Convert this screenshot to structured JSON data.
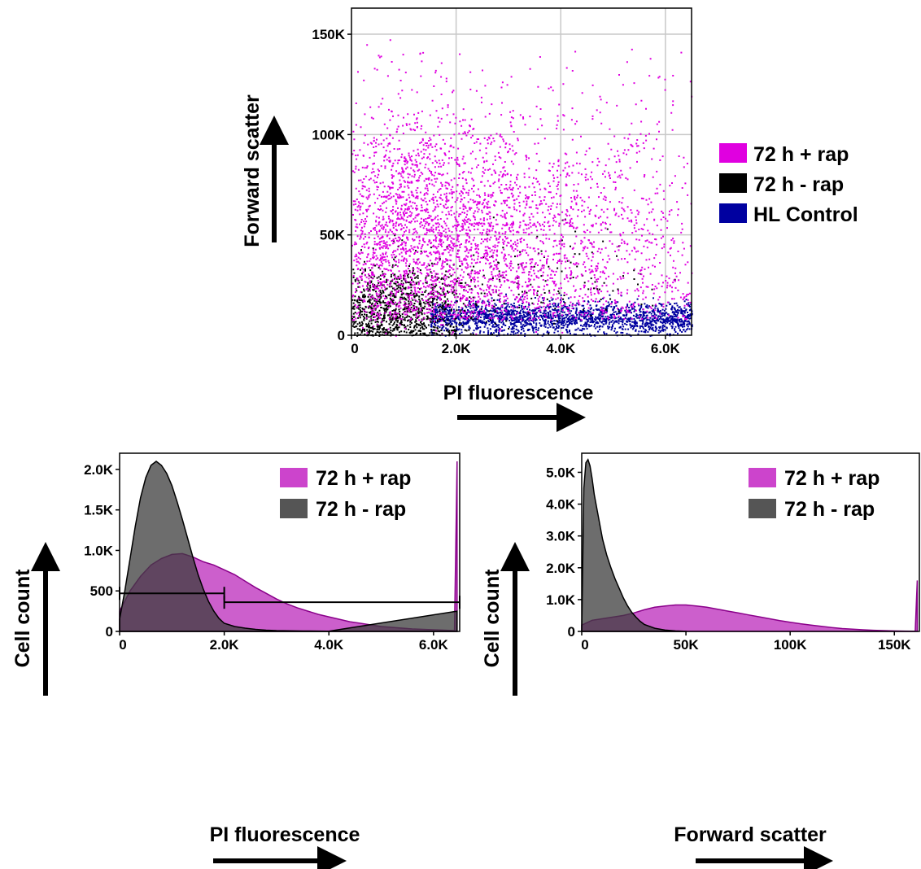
{
  "chart_data": [
    {
      "type": "scatter",
      "xlabel": "PI fluorescence",
      "ylabel": "Forward scatter",
      "xlim": [
        0,
        6500
      ],
      "ylim": [
        0,
        163000
      ],
      "x_ticks": [
        "0",
        "2.0K",
        "4.0K",
        "6.0K"
      ],
      "x_tick_values": [
        0,
        2000,
        4000,
        6000
      ],
      "y_ticks": [
        "0",
        "50K",
        "100K",
        "150K"
      ],
      "y_tick_values": [
        0,
        50000,
        100000,
        150000
      ],
      "grid": true,
      "legend_position": "right",
      "series": [
        {
          "name": "HL Control",
          "color": "#0000a0",
          "approx_center": [
            3600,
            9000
          ],
          "approx_spread": [
            1900,
            5000
          ],
          "approx_points": 1900
        },
        {
          "name": "72 h - rap",
          "color": "#000000",
          "approx_center": [
            900,
            13000
          ],
          "approx_spread": [
            700,
            12000
          ],
          "approx_points": 3200
        },
        {
          "name": "72 h + rap",
          "color": "#e000e0",
          "approx_center": [
            1900,
            55000
          ],
          "approx_spread": [
            1300,
            35000
          ],
          "approx_points": 4200
        }
      ]
    },
    {
      "type": "area",
      "xlabel": "PI fluorescence",
      "ylabel": "Cell count",
      "xlim": [
        0,
        6500
      ],
      "ylim": [
        0,
        2200
      ],
      "x_ticks": [
        "0",
        "2.0K",
        "4.0K",
        "6.0K"
      ],
      "x_tick_values": [
        0,
        2000,
        4000,
        6000
      ],
      "y_ticks": [
        "0",
        "500",
        "1.0K",
        "1.5K",
        "2.0K"
      ],
      "y_tick_values": [
        0,
        500,
        1000,
        1500,
        2000
      ],
      "legend_position": "top-right",
      "gates": [
        {
          "x_from": 0,
          "x_to": 2000,
          "y": 470
        },
        {
          "x_from": 2000,
          "x_to": 6500,
          "y": 360
        }
      ],
      "series": [
        {
          "name": "72 h + rap",
          "color": "#cc44cc",
          "x": [
            0,
            200,
            400,
            600,
            800,
            1000,
            1200,
            1400,
            1600,
            1800,
            2000,
            2200,
            2400,
            2600,
            2800,
            3000,
            3200,
            3400,
            3600,
            3800,
            4000,
            4200,
            4400,
            4600,
            4800,
            5000,
            5200,
            5400,
            5600,
            5800,
            6000,
            6200,
            6400,
            6450
          ],
          "values": [
            250,
            500,
            680,
            820,
            900,
            950,
            960,
            920,
            860,
            820,
            760,
            700,
            620,
            540,
            470,
            400,
            340,
            290,
            250,
            210,
            180,
            150,
            120,
            100,
            80,
            60,
            50,
            40,
            30,
            25,
            20,
            15,
            10,
            2100
          ]
        },
        {
          "name": "72 h - rap",
          "color": "#555555",
          "x": [
            0,
            100,
            200,
            300,
            400,
            500,
            600,
            700,
            800,
            900,
            1000,
            1100,
            1200,
            1300,
            1400,
            1500,
            1600,
            1700,
            1800,
            1900,
            2000,
            2200,
            2400,
            2600,
            2800,
            3000,
            3500,
            4000,
            6450
          ],
          "values": [
            150,
            500,
            900,
            1300,
            1650,
            1900,
            2050,
            2100,
            2050,
            1950,
            1800,
            1600,
            1380,
            1150,
            920,
            700,
            520,
            370,
            250,
            160,
            100,
            60,
            40,
            25,
            15,
            10,
            5,
            3,
            250
          ]
        }
      ]
    },
    {
      "type": "area",
      "xlabel": "Forward scatter",
      "ylabel": "Cell count",
      "xlim": [
        0,
        162000
      ],
      "ylim": [
        0,
        5600
      ],
      "x_ticks": [
        "0",
        "50K",
        "100K",
        "150K"
      ],
      "x_tick_values": [
        0,
        50000,
        100000,
        150000
      ],
      "y_ticks": [
        "0",
        "1.0K",
        "2.0K",
        "3.0K",
        "4.0K",
        "5.0K"
      ],
      "y_tick_values": [
        0,
        1000,
        2000,
        3000,
        4000,
        5000
      ],
      "legend_position": "top-right",
      "series": [
        {
          "name": "72 h + rap",
          "color": "#cc44cc",
          "x": [
            0,
            5000,
            10000,
            15000,
            20000,
            25000,
            30000,
            35000,
            40000,
            45000,
            50000,
            55000,
            60000,
            65000,
            70000,
            75000,
            80000,
            85000,
            90000,
            95000,
            100000,
            105000,
            110000,
            115000,
            120000,
            125000,
            130000,
            135000,
            140000,
            145000,
            150000,
            155000,
            160000,
            161000
          ],
          "values": [
            200,
            350,
            400,
            450,
            500,
            580,
            680,
            760,
            800,
            830,
            830,
            800,
            760,
            700,
            640,
            580,
            520,
            460,
            400,
            340,
            290,
            240,
            200,
            160,
            120,
            90,
            70,
            50,
            35,
            25,
            15,
            10,
            5,
            1600
          ]
        },
        {
          "name": "72 h - rap",
          "color": "#555555",
          "x": [
            0,
            1000,
            2000,
            3000,
            4000,
            5000,
            6000,
            8000,
            10000,
            12000,
            14000,
            16000,
            18000,
            20000,
            22000,
            24000,
            26000,
            28000,
            30000,
            35000,
            40000,
            45000,
            50000
          ],
          "values": [
            0,
            4500,
            5300,
            5400,
            5200,
            4800,
            4300,
            3600,
            2900,
            2400,
            2000,
            1650,
            1350,
            1050,
            800,
            600,
            450,
            320,
            220,
            100,
            40,
            15,
            5
          ]
        }
      ]
    }
  ]
}
